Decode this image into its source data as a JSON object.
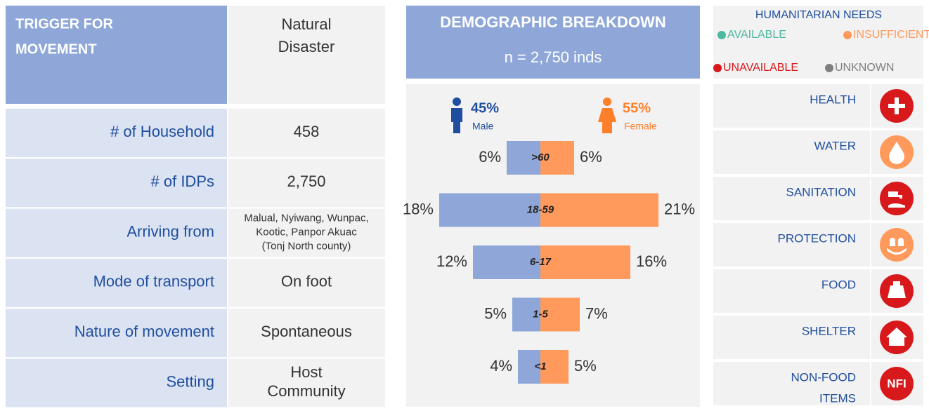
{
  "movement": {
    "header": {
      "label_lines": [
        "TRIGGER FOR",
        "MOVEMENT"
      ],
      "value_lines": [
        "Natural",
        "Disaster"
      ]
    },
    "rows": [
      {
        "label": "# of Household",
        "value_lines": [
          "458"
        ]
      },
      {
        "label": "# of IDPs",
        "value_lines": [
          "2,750"
        ]
      },
      {
        "label": "Arriving from",
        "value_lines": [
          "Malual, Nyiwang, Wunpac,",
          "Kootic, Panpor Akuac",
          "(Tonj North county)"
        ]
      },
      {
        "label": "Mode of transport",
        "value_lines": [
          "On foot"
        ]
      },
      {
        "label": "Nature of movement",
        "value_lines": [
          "Spontaneous"
        ]
      },
      {
        "label": "Setting",
        "value_lines": [
          "Host",
          "Community"
        ]
      }
    ]
  },
  "demographics": {
    "title": "DEMOGRAPHIC BREAKDOWN",
    "subtitle": "n = 2,750 inds",
    "male": {
      "percent": "45%",
      "label": "Male",
      "color": "#8ea7d8"
    },
    "female": {
      "percent": "55%",
      "label": "Female",
      "color": "#ff9a5c"
    },
    "age_groups": [
      ">60",
      "18-59",
      "6-17",
      "1-5",
      "<1"
    ],
    "male_values": [
      6,
      18,
      12,
      5,
      4
    ],
    "male_value_labels": [
      "6%",
      "18%",
      "12%",
      "5%",
      "4%"
    ],
    "female_values": [
      6,
      21,
      16,
      7,
      5
    ],
    "female_value_labels": [
      "6%",
      "21%",
      "16%",
      "7%",
      "5%"
    ]
  },
  "needs": {
    "title": "HUMANITARIAN NEEDS",
    "legend": [
      {
        "label": "AVAILABLE",
        "color": "#4fb8a0"
      },
      {
        "label": "INSUFFICIENT",
        "color": "#ff9a5c"
      },
      {
        "label": "UNAVAILABLE",
        "color": "#d7191c"
      },
      {
        "label": "UNKNOWN",
        "color": "#7f7f7f"
      }
    ],
    "items": [
      {
        "label_lines": [
          "HEALTH"
        ],
        "color": "#d7191c"
      },
      {
        "label_lines": [
          "WATER"
        ],
        "color": "#ff9a5c"
      },
      {
        "label_lines": [
          "SANITATION"
        ],
        "color": "#d7191c"
      },
      {
        "label_lines": [
          "PROTECTION"
        ],
        "color": "#ff9a5c"
      },
      {
        "label_lines": [
          "FOOD"
        ],
        "color": "#d7191c"
      },
      {
        "label_lines": [
          "SHELTER"
        ],
        "color": "#d7191c"
      },
      {
        "label_lines": [
          "NON-FOOD",
          "ITEMS"
        ],
        "color": "#d7191c",
        "icon_label": "NFI"
      }
    ]
  }
}
